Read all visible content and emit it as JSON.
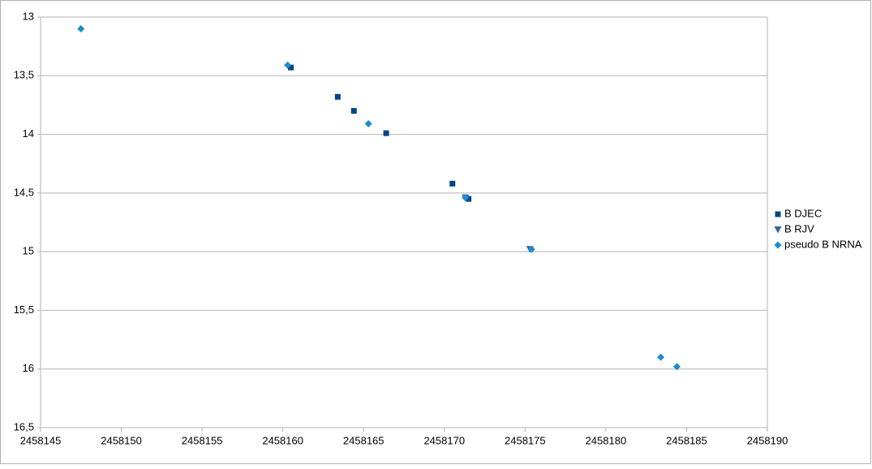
{
  "chart_data": {
    "type": "scatter",
    "xlim": [
      2458145,
      2458190
    ],
    "xticks": [
      2458145,
      2458150,
      2458155,
      2458160,
      2458165,
      2458170,
      2458175,
      2458180,
      2458185,
      2458190
    ],
    "ylim": [
      13,
      16.5
    ],
    "y_inverted": true,
    "yticks": [
      13,
      {
        "value": 13.5,
        "label": "13,5"
      },
      14,
      {
        "value": 14.5,
        "label": "14,5"
      },
      15,
      {
        "value": 15.5,
        "label": "15,5"
      },
      16,
      {
        "value": 16.5,
        "label": "16,5"
      }
    ],
    "grid": true,
    "legend": "right",
    "series": [
      {
        "name": "B DJEC",
        "color": "#004586",
        "marker": "square",
        "x": [
          2458160.5,
          2458163.4,
          2458164.4,
          2458166.4,
          2458170.5,
          2458171.5
        ],
        "values": [
          13.43,
          13.68,
          13.8,
          13.99,
          14.42,
          14.55
        ]
      },
      {
        "name": "B RJV",
        "color": "#3465a4",
        "marker": "triangle",
        "x": [
          2458171.3,
          2458175.3
        ],
        "values": [
          14.54,
          14.98
        ]
      },
      {
        "name": "pseudo B NRNA",
        "color": "#1c8ccf",
        "marker": "diamond",
        "x": [
          2458147.5,
          2458160.3,
          2458165.3,
          2458171.3,
          2458175.4,
          2458183.4,
          2458184.4
        ],
        "values": [
          13.1,
          13.41,
          13.91,
          14.54,
          14.98,
          15.9,
          15.98
        ]
      }
    ]
  }
}
